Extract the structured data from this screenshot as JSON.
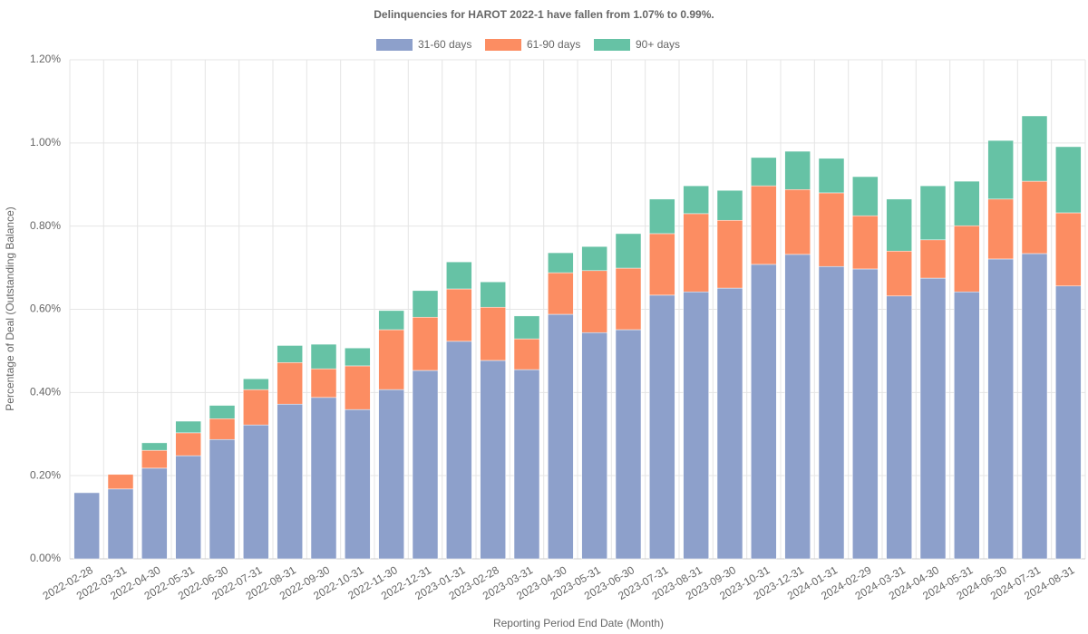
{
  "chart_data": {
    "type": "stacked_bar",
    "title": "Delinquencies for HAROT 2022-1 have fallen from 1.07% to 0.99%.",
    "x_label": "Reporting Period End Date (Month)",
    "y_label": "Percentage of Deal (Outstanding Balance)",
    "categories": [
      "2022-02-28",
      "2022-03-31",
      "2022-04-30",
      "2022-05-31",
      "2022-06-30",
      "2022-07-31",
      "2022-08-31",
      "2022-09-30",
      "2022-10-31",
      "2022-11-30",
      "2022-12-31",
      "2023-01-31",
      "2023-02-28",
      "2023-03-31",
      "2023-04-30",
      "2023-05-31",
      "2023-06-30",
      "2023-07-31",
      "2023-08-31",
      "2023-09-30",
      "2023-10-31",
      "2023-12-31",
      "2024-01-31",
      "2024-02-29",
      "2024-03-31",
      "2024-04-30",
      "2024-05-31",
      "2024-06-30",
      "2024-07-31",
      "2024-08-31"
    ],
    "series": [
      {
        "name": "31-60 days",
        "color": "#8da0cb",
        "values": [
          0.159,
          0.168,
          0.218,
          0.248,
          0.287,
          0.322,
          0.372,
          0.388,
          0.359,
          0.407,
          0.453,
          0.523,
          0.477,
          0.455,
          0.588,
          0.544,
          0.551,
          0.634,
          0.642,
          0.651,
          0.708,
          0.732,
          0.703,
          0.697,
          0.632,
          0.675,
          0.642,
          0.721,
          0.734,
          0.656
        ]
      },
      {
        "name": "61-90 days",
        "color": "#fc8d62",
        "values": [
          0,
          0.035,
          0.043,
          0.055,
          0.05,
          0.085,
          0.1,
          0.069,
          0.105,
          0.144,
          0.128,
          0.126,
          0.128,
          0.074,
          0.1,
          0.149,
          0.148,
          0.148,
          0.188,
          0.163,
          0.189,
          0.156,
          0.177,
          0.128,
          0.108,
          0.092,
          0.159,
          0.144,
          0.174,
          0.176
        ]
      },
      {
        "name": "90+ days",
        "color": "#66c2a5",
        "values": [
          0,
          0,
          0.018,
          0.028,
          0.032,
          0.026,
          0.041,
          0.059,
          0.043,
          0.046,
          0.064,
          0.065,
          0.061,
          0.055,
          0.048,
          0.058,
          0.083,
          0.083,
          0.067,
          0.072,
          0.068,
          0.092,
          0.083,
          0.094,
          0.125,
          0.13,
          0.107,
          0.141,
          0.157,
          0.159
        ]
      }
    ],
    "ylim": [
      0,
      1.2
    ],
    "yticks": [
      {
        "value": 0,
        "label": "0.00%"
      },
      {
        "value": 0.2,
        "label": "0.20%"
      },
      {
        "value": 0.4,
        "label": "0.40%"
      },
      {
        "value": 0.6,
        "label": "0.60%"
      },
      {
        "value": 0.8,
        "label": "0.80%"
      },
      {
        "value": 1.0,
        "label": "1.00%"
      },
      {
        "value": 1.2,
        "label": "1.20%"
      }
    ],
    "grid": true
  }
}
